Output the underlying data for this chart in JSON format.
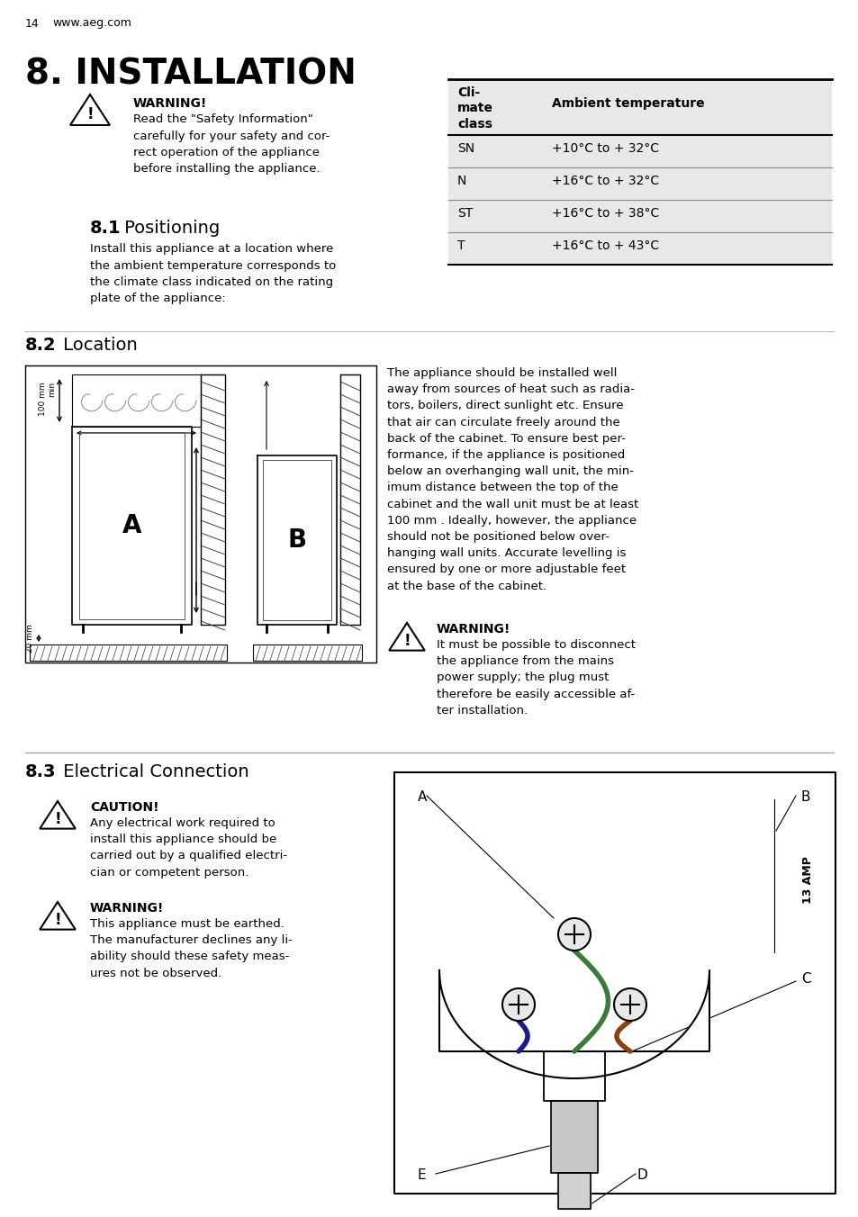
{
  "page_number": "14",
  "website": "www.aeg.com",
  "main_title": "8. INSTALLATION",
  "bg_color": "#ffffff",
  "warning_intro_bold": "WARNING!",
  "warning_intro_text": "Read the \"Safety Information\"\ncarefully for your safety and cor-\nrect operation of the appliance\nbefore installing the appliance.",
  "table_header_col1": "Cli-\nmate\nclass",
  "table_header_col2": "Ambient temperature",
  "table_rows": [
    [
      "SN",
      "+10°C to + 32°C"
    ],
    [
      "N",
      "+16°C to + 32°C"
    ],
    [
      "ST",
      "+16°C to + 38°C"
    ],
    [
      "T",
      "+16°C to + 43°C"
    ]
  ],
  "section_81_bold": "8.1",
  "section_81_normal": " Positioning",
  "section_81_text": "Install this appliance at a location where\nthe ambient temperature corresponds to\nthe climate class indicated on the rating\nplate of the appliance:",
  "section_82_bold": "8.2",
  "section_82_normal": " Location",
  "section_82_text": "The appliance should be installed well\naway from sources of heat such as radia-\ntors, boilers, direct sunlight etc. Ensure\nthat air can circulate freely around the\nback of the cabinet. To ensure best per-\nformance, if the appliance is positioned\nbelow an overhanging wall unit, the min-\nimum distance between the top of the\ncabinet and the wall unit must be at least\n100 mm . Ideally, however, the appliance\nshould not be positioned below over-\nhanging wall units. Accurate levelling is\nensured by one or more adjustable feet\nat the base of the cabinet.",
  "warning_82_bold": "WARNING!",
  "warning_82_text": "It must be possible to disconnect\nthe appliance from the mains\npower supply; the plug must\ntherefore be easily accessible af-\nter installation.",
  "section_83_bold": "8.3",
  "section_83_normal": " Electrical Connection",
  "caution_bold": "CAUTION!",
  "caution_text": "Any electrical work required to\ninstall this appliance should be\ncarried out by a qualified electri-\ncian or competent person.",
  "warning_83_bold": "WARNING!",
  "warning_83_text": "This appliance must be earthed.\nThe manufacturer declines any li-\nability should these safety meas-\nures not be observed."
}
